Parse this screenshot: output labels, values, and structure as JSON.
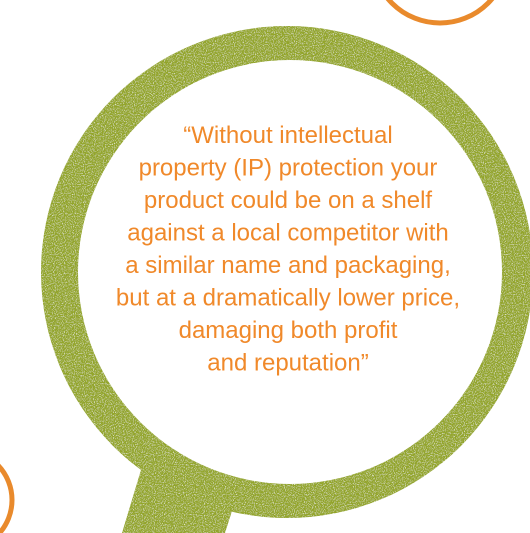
{
  "quote": {
    "lines": [
      "“Without intellectual",
      "property (IP) protection your",
      "product could be on a shelf",
      "against a local competitor with",
      "a similar name and packaging,",
      "but at a dramatically lower price,",
      "damaging both profit",
      "and reputation”"
    ]
  }
}
